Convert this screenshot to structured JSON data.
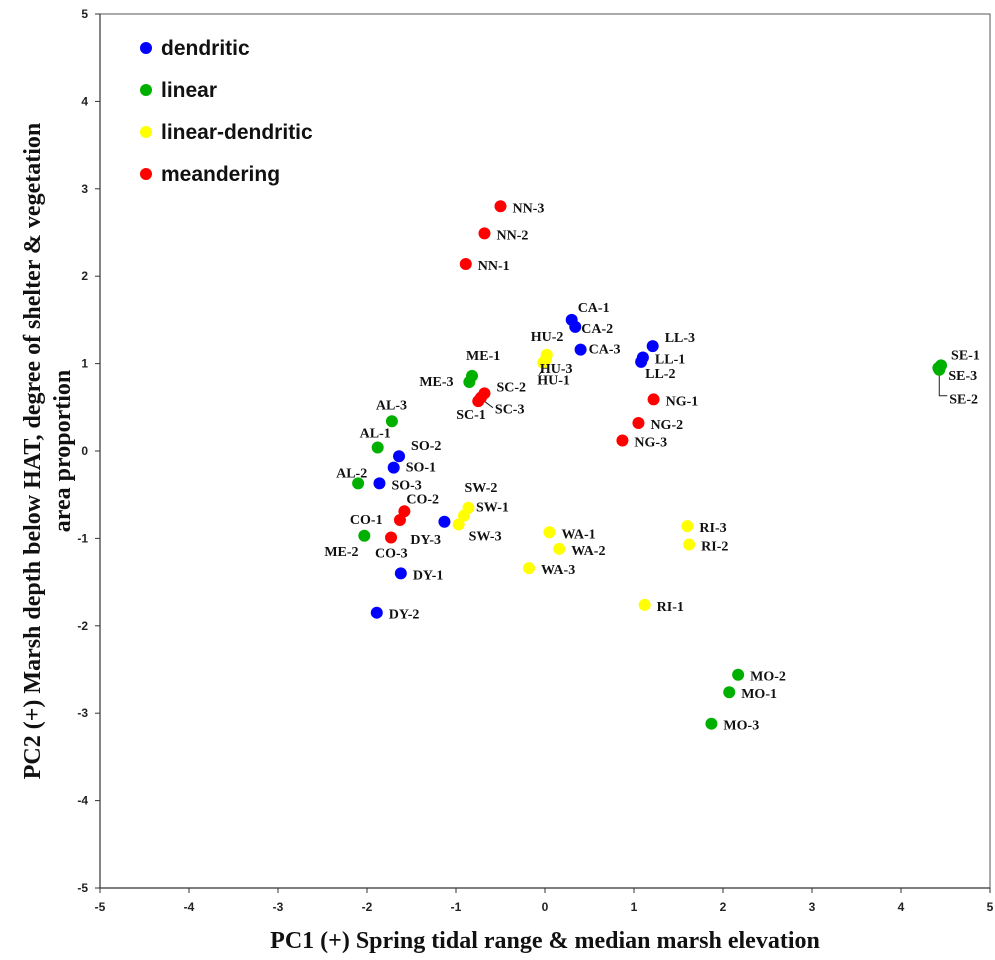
{
  "chart_data": {
    "type": "scatter",
    "title": "",
    "xlabel": "PC1 (+) Spring tidal range & median marsh elevation",
    "ylabel": "PC2 (+) Marsh depth below HAT, degree of shelter & vegetation area proportion",
    "xlim": [
      -5,
      5
    ],
    "ylim": [
      -5,
      5
    ],
    "xticks": [
      -5,
      -4,
      -3,
      -2,
      -1,
      0,
      1,
      2,
      3,
      4,
      5
    ],
    "yticks": [
      -5,
      -4,
      -3,
      -2,
      -1,
      0,
      1,
      2,
      3,
      4,
      5
    ],
    "grid": false,
    "legend_position": "top-left",
    "series": [
      {
        "name": "dendritic",
        "color": "#0000ff",
        "points": [
          {
            "label": "CA-1",
            "x": 0.3,
            "y": 1.5
          },
          {
            "label": "CA-2",
            "x": 0.34,
            "y": 1.42
          },
          {
            "label": "CA-3",
            "x": 0.4,
            "y": 1.16
          },
          {
            "label": "LL-3",
            "x": 1.21,
            "y": 1.2
          },
          {
            "label": "LL-1",
            "x": 1.1,
            "y": 1.07
          },
          {
            "label": "LL-2",
            "x": 1.08,
            "y": 1.02
          },
          {
            "label": "SO-2",
            "x": -1.64,
            "y": -0.06
          },
          {
            "label": "SO-1",
            "x": -1.7,
            "y": -0.19
          },
          {
            "label": "SO-3",
            "x": -1.86,
            "y": -0.37
          },
          {
            "label": "DY-3",
            "x": -1.13,
            "y": -0.81
          },
          {
            "label": "DY-1",
            "x": -1.62,
            "y": -1.4
          },
          {
            "label": "DY-2",
            "x": -1.89,
            "y": -1.85
          }
        ]
      },
      {
        "name": "linear",
        "color": "#00b000",
        "points": [
          {
            "label": "ME-1",
            "x": -0.82,
            "y": 0.86
          },
          {
            "label": "ME-3",
            "x": -0.85,
            "y": 0.79
          },
          {
            "label": "AL-3",
            "x": -1.72,
            "y": 0.34
          },
          {
            "label": "AL-1",
            "x": -1.88,
            "y": 0.04
          },
          {
            "label": "AL-2",
            "x": -2.1,
            "y": -0.37
          },
          {
            "label": "ME-2",
            "x": -2.03,
            "y": -0.97
          },
          {
            "label": "SE-1",
            "x": 4.45,
            "y": 0.98
          },
          {
            "label": "SE-3",
            "x": 4.42,
            "y": 0.95
          },
          {
            "label": "SE-2",
            "x": 4.43,
            "y": 0.93
          },
          {
            "label": "MO-2",
            "x": 2.17,
            "y": -2.56
          },
          {
            "label": "MO-1",
            "x": 2.07,
            "y": -2.76
          },
          {
            "label": "MO-3",
            "x": 1.87,
            "y": -3.12
          }
        ]
      },
      {
        "name": "linear-dendritic",
        "color": "#ffff00",
        "points": [
          {
            "label": "HU-2",
            "x": 0.02,
            "y": 1.1
          },
          {
            "label": "HU-3",
            "x": 0.01,
            "y": 1.05
          },
          {
            "label": "HU-1",
            "x": -0.02,
            "y": 1.01
          },
          {
            "label": "SW-2",
            "x": -0.86,
            "y": -0.65
          },
          {
            "label": "SW-1",
            "x": -0.91,
            "y": -0.74
          },
          {
            "label": "SW-3",
            "x": -0.97,
            "y": -0.84
          },
          {
            "label": "WA-1",
            "x": 0.05,
            "y": -0.93
          },
          {
            "label": "WA-2",
            "x": 0.16,
            "y": -1.12
          },
          {
            "label": "WA-3",
            "x": -0.18,
            "y": -1.34
          },
          {
            "label": "RI-3",
            "x": 1.6,
            "y": -0.86
          },
          {
            "label": "RI-2",
            "x": 1.62,
            "y": -1.07
          },
          {
            "label": "RI-1",
            "x": 1.12,
            "y": -1.76
          }
        ]
      },
      {
        "name": "meandering",
        "color": "#ff0000",
        "points": [
          {
            "label": "NN-3",
            "x": -0.5,
            "y": 2.8
          },
          {
            "label": "NN-2",
            "x": -0.68,
            "y": 2.49
          },
          {
            "label": "NN-1",
            "x": -0.89,
            "y": 2.14
          },
          {
            "label": "SC-2",
            "x": -0.68,
            "y": 0.66
          },
          {
            "label": "SC-1",
            "x": -0.75,
            "y": 0.57
          },
          {
            "label": "SC-3",
            "x": -0.72,
            "y": 0.61
          },
          {
            "label": "NG-1",
            "x": 1.22,
            "y": 0.59
          },
          {
            "label": "NG-2",
            "x": 1.05,
            "y": 0.32
          },
          {
            "label": "NG-3",
            "x": 0.87,
            "y": 0.12
          },
          {
            "label": "CO-2",
            "x": -1.58,
            "y": -0.69
          },
          {
            "label": "CO-1",
            "x": -1.63,
            "y": -0.79
          },
          {
            "label": "CO-3",
            "x": -1.73,
            "y": -0.99
          }
        ]
      }
    ]
  }
}
